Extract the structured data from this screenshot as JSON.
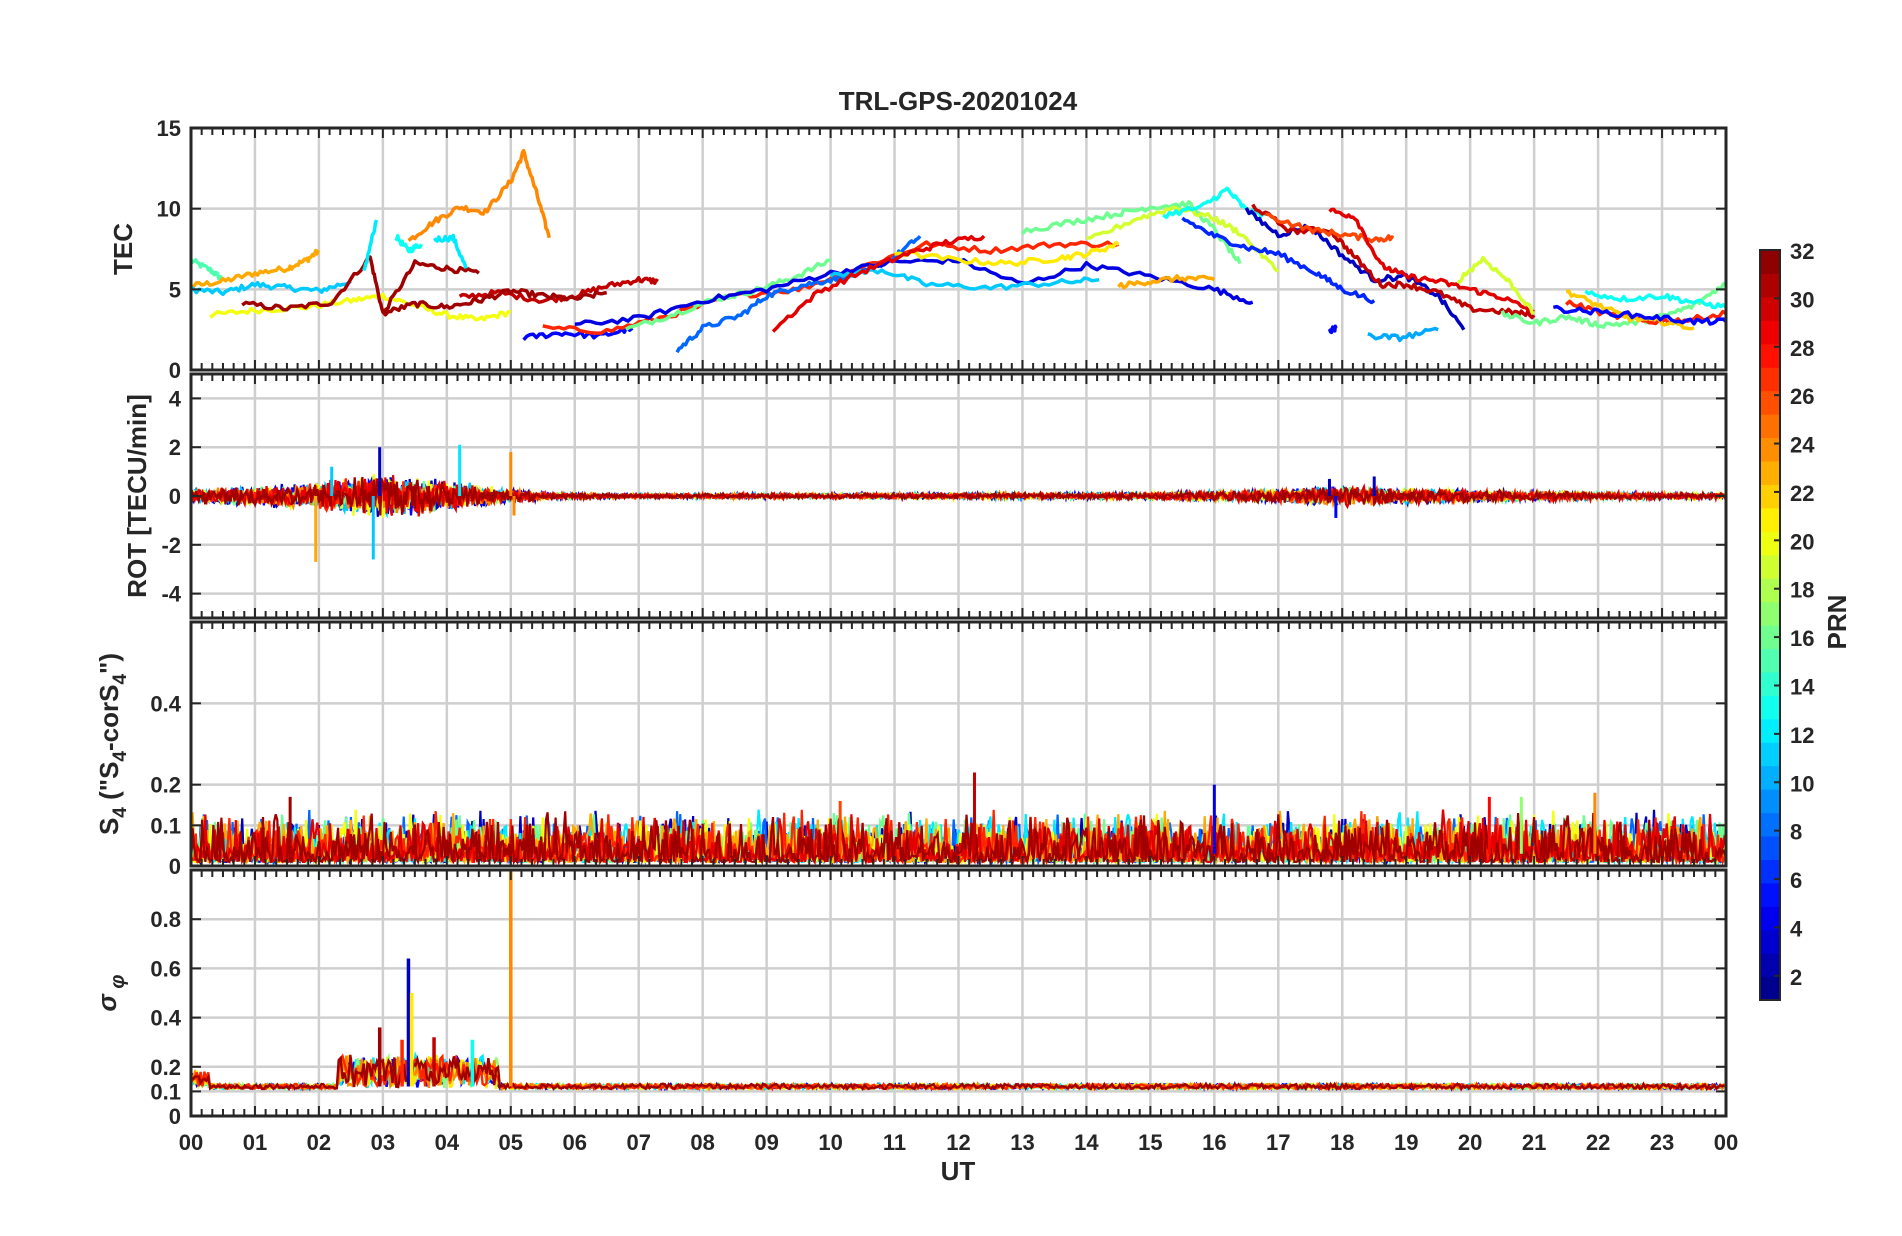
{
  "chart_data": {
    "type": "line",
    "title": "TRL-GPS-20201024",
    "xlabel": "UT",
    "x_tick_labels": [
      "00",
      "01",
      "02",
      "03",
      "04",
      "05",
      "06",
      "07",
      "08",
      "09",
      "10",
      "11",
      "12",
      "13",
      "14",
      "15",
      "16",
      "17",
      "18",
      "19",
      "20",
      "21",
      "22",
      "23",
      "00"
    ],
    "xlim": [
      0,
      24
    ],
    "colorbar": {
      "label": "PRN",
      "colormap": "jet",
      "range": [
        1,
        32
      ],
      "tick_labels": [
        "2",
        "4",
        "6",
        "8",
        "10",
        "12",
        "14",
        "16",
        "18",
        "20",
        "22",
        "24",
        "26",
        "28",
        "30",
        "32"
      ],
      "tick_values": [
        2,
        4,
        6,
        8,
        10,
        12,
        14,
        16,
        18,
        20,
        22,
        24,
        26,
        28,
        30,
        32
      ]
    },
    "panels": [
      {
        "id": "tec",
        "ylabel": "TEC",
        "ylim": [
          0,
          15
        ],
        "yticks": [
          0,
          5,
          10,
          15
        ],
        "ytick_labels": [
          "0",
          "5",
          "10",
          "15"
        ],
        "series": [
          {
            "prn": 15,
            "x": [
              0,
              0.3,
              0.5
            ],
            "y": [
              6.8,
              6.2,
              5.6
            ]
          },
          {
            "prn": 23,
            "x": [
              0,
              0.5,
              1.0,
              1.5,
              1.8,
              2.0
            ],
            "y": [
              5.2,
              5.5,
              6.0,
              6.3,
              6.8,
              7.4
            ]
          },
          {
            "prn": 11,
            "x": [
              0,
              0.5,
              1.0,
              1.5,
              2.0,
              2.5
            ],
            "y": [
              5.0,
              4.8,
              5.3,
              5.1,
              4.9,
              5.5
            ]
          },
          {
            "prn": 20,
            "x": [
              0.3,
              1.0,
              1.8,
              2.5,
              3.0,
              3.5,
              4.0,
              4.5,
              5.0
            ],
            "y": [
              3.4,
              3.7,
              3.9,
              4.3,
              4.6,
              4.0,
              3.4,
              3.1,
              3.6
            ]
          },
          {
            "prn": 31,
            "x": [
              0.8,
              1.5,
              2.2,
              2.8,
              3.0,
              3.5,
              4.0,
              4.5
            ],
            "y": [
              4.1,
              3.8,
              4.2,
              7.0,
              3.5,
              6.6,
              6.3,
              6.0
            ]
          },
          {
            "prn": 12,
            "x": [
              2.7,
              2.9
            ],
            "y": [
              6.0,
              9.3
            ]
          },
          {
            "prn": 13,
            "x": [
              3.2,
              3.4,
              3.6
            ],
            "y": [
              8.3,
              7.4,
              7.8
            ]
          },
          {
            "prn": 24,
            "x": [
              3.4,
              3.8,
              4.2,
              4.6,
              5.0,
              5.2,
              5.4,
              5.6
            ],
            "y": [
              8.0,
              9.2,
              10.1,
              9.8,
              11.7,
              13.5,
              11.0,
              8.2
            ]
          },
          {
            "prn": 12,
            "x": [
              3.8,
              4.1,
              4.3
            ],
            "y": [
              8.1,
              8.2,
              6.3
            ]
          },
          {
            "prn": 30,
            "x": [
              4.2,
              4.8,
              5.5,
              6.0,
              6.5,
              7.0,
              7.3
            ],
            "y": [
              4.5,
              4.8,
              4.3,
              4.6,
              5.2,
              5.6,
              5.5
            ]
          },
          {
            "prn": 31,
            "x": [
              3.0,
              3.5,
              4.0,
              4.5,
              5.0,
              5.5,
              6.0,
              6.5
            ],
            "y": [
              3.5,
              4.1,
              3.9,
              4.3,
              4.9,
              4.6,
              4.4,
              4.8
            ]
          },
          {
            "prn": 5,
            "x": [
              5.2,
              5.8,
              6.4,
              6.9
            ],
            "y": [
              2.0,
              2.3,
              2.1,
              2.6
            ]
          },
          {
            "prn": 27,
            "x": [
              5.5,
              6.5,
              7.5,
              8.5,
              9.5,
              10.5,
              11.5,
              12.5,
              13.5,
              14.5
            ],
            "y": [
              2.6,
              2.4,
              3.4,
              4.6,
              5.0,
              6.4,
              7.8,
              7.4,
              7.8,
              7.8
            ]
          },
          {
            "prn": 16,
            "x": [
              6.8,
              7.5,
              8.2,
              8.8,
              9.4,
              10.0
            ],
            "y": [
              2.5,
              3.4,
              4.4,
              4.9,
              5.7,
              6.8
            ]
          },
          {
            "prn": 8,
            "x": [
              7.6,
              8.0,
              8.6,
              9.0,
              9.5,
              10.0,
              10.5,
              11.0,
              11.4
            ],
            "y": [
              1.2,
              2.6,
              3.4,
              4.6,
              5.2,
              5.6,
              6.0,
              7.0,
              8.3
            ]
          },
          {
            "prn": 4,
            "x": [
              6.0,
              7.0,
              8.0,
              9.0,
              10.0,
              11.0,
              12.0,
              13.0,
              14.0,
              15.0,
              16.0,
              16.6
            ],
            "y": [
              2.8,
              3.2,
              4.3,
              5.0,
              6.0,
              6.7,
              6.8,
              5.3,
              6.5,
              5.8,
              5.0,
              4.2
            ]
          },
          {
            "prn": 11,
            "x": [
              10.0,
              10.8,
              11.5,
              12.5,
              13.5,
              14.2
            ],
            "y": [
              5.8,
              6.2,
              5.3,
              5.1,
              5.4,
              5.6
            ]
          },
          {
            "prn": 21,
            "x": [
              11.0,
              12.0,
              12.8,
              13.5,
              14.0,
              14.5
            ],
            "y": [
              7.3,
              6.8,
              6.6,
              6.9,
              7.2,
              7.8
            ]
          },
          {
            "prn": 29,
            "x": [
              9.1,
              9.8,
              10.5,
              11.2,
              11.8,
              12.4
            ],
            "y": [
              2.5,
              4.8,
              6.1,
              7.2,
              7.9,
              8.3
            ]
          },
          {
            "prn": 16,
            "x": [
              13.0,
              13.8,
              14.5,
              15.0,
              15.6,
              16.0,
              16.4
            ],
            "y": [
              8.6,
              9.2,
              9.7,
              10.1,
              10.3,
              8.7,
              6.6
            ]
          },
          {
            "prn": 19,
            "x": [
              14.0,
              14.8,
              15.4,
              16.0,
              16.4,
              17.0
            ],
            "y": [
              8.0,
              9.4,
              10.1,
              9.4,
              8.5,
              6.1
            ]
          },
          {
            "prn": 13,
            "x": [
              15.2,
              15.8,
              16.2,
              16.5,
              16.8
            ],
            "y": [
              9.6,
              10.1,
              11.2,
              9.9,
              9.6
            ]
          },
          {
            "prn": 23,
            "x": [
              14.5,
              15.0,
              15.5,
              16.0
            ],
            "y": [
              5.2,
              5.5,
              5.7,
              5.6
            ]
          },
          {
            "prn": 6,
            "x": [
              15.5,
              16.0,
              16.5,
              17.0,
              17.6,
              18.0,
              18.5
            ],
            "y": [
              9.4,
              8.3,
              7.6,
              7.2,
              6.0,
              5.0,
              4.3
            ]
          },
          {
            "prn": 3,
            "x": [
              16.5,
              17.0,
              17.5,
              18.0,
              18.5,
              19.0,
              19.5,
              19.9
            ],
            "y": [
              9.9,
              8.4,
              8.9,
              7.1,
              5.6,
              5.8,
              4.6,
              2.5
            ]
          },
          {
            "prn": 30,
            "x": [
              16.6,
              17.2,
              17.8,
              18.2,
              18.6,
              19.0,
              19.5,
              20.0,
              20.6,
              21.0
            ],
            "y": [
              10.2,
              8.6,
              8.7,
              7.0,
              5.3,
              5.3,
              4.8,
              3.8,
              3.6,
              3.4
            ]
          },
          {
            "prn": 26,
            "x": [
              16.8,
              17.5,
              18.0,
              18.5,
              18.8
            ],
            "y": [
              9.6,
              8.7,
              8.4,
              8.1,
              8.2
            ]
          },
          {
            "prn": 29,
            "x": [
              17.8,
              18.2,
              18.6,
              19.0,
              19.5,
              20.0,
              20.5,
              21.0
            ],
            "y": [
              9.9,
              9.5,
              6.5,
              5.8,
              5.5,
              5.0,
              4.5,
              3.6
            ]
          },
          {
            "prn": 10,
            "x": [
              18.4,
              18.9,
              19.5
            ],
            "y": [
              2.1,
              2.0,
              2.5
            ]
          },
          {
            "prn": 19,
            "x": [
              19.8,
              20.2,
              20.6,
              21.0
            ],
            "y": [
              5.5,
              6.9,
              5.5,
              3.5
            ]
          },
          {
            "prn": 16,
            "x": [
              20.5,
              21.0,
              21.5,
              22.0,
              22.5,
              23.0,
              23.5,
              24.0
            ],
            "y": [
              3.5,
              2.9,
              3.3,
              2.8,
              2.9,
              3.3,
              4.0,
              5.4
            ]
          },
          {
            "prn": 13,
            "x": [
              21.8,
              22.4,
              23.0,
              23.5,
              24.0
            ],
            "y": [
              4.8,
              4.4,
              4.6,
              4.2,
              3.9
            ]
          },
          {
            "prn": 27,
            "x": [
              21.5,
              22.2,
              22.8,
              23.4,
              24.0
            ],
            "y": [
              4.2,
              3.4,
              3.0,
              3.1,
              3.5
            ]
          },
          {
            "prn": 22,
            "x": [
              21.5,
              22.0,
              22.5,
              23.0,
              23.5
            ],
            "y": [
              4.9,
              4.0,
              3.2,
              3.0,
              2.6
            ]
          },
          {
            "prn": 5,
            "x": [
              21.3,
              22.0,
              22.8,
              23.5,
              24.0
            ],
            "y": [
              3.8,
              3.6,
              3.3,
              3.0,
              3.0
            ]
          },
          {
            "prn": 5,
            "x": [
              17.8,
              17.9
            ],
            "y": [
              2.4,
              2.6
            ]
          }
        ]
      },
      {
        "id": "rot",
        "ylabel": "ROT [TECU/min]",
        "ylim": [
          -5,
          5
        ],
        "yticks": [
          -4,
          -2,
          0,
          2,
          4
        ],
        "ytick_labels": [
          "-4",
          "-2",
          "0",
          "2",
          "4"
        ],
        "spikes": [
          {
            "prn": 23,
            "x": 1.95,
            "y": -2.7
          },
          {
            "prn": 11,
            "x": 2.85,
            "y": -2.6
          },
          {
            "prn": 3,
            "x": 2.95,
            "y": 2.0
          },
          {
            "prn": 12,
            "x": 4.2,
            "y": 2.1
          },
          {
            "prn": 24,
            "x": 5.0,
            "y": 1.8
          },
          {
            "prn": 24,
            "x": 5.05,
            "y": -0.8
          },
          {
            "prn": 11,
            "x": 2.2,
            "y": 1.2
          },
          {
            "prn": 3,
            "x": 17.8,
            "y": 0.7
          },
          {
            "prn": 3,
            "x": 18.5,
            "y": 0.8
          },
          {
            "prn": 5,
            "x": 17.9,
            "y": -0.9
          }
        ],
        "noise_amplitude_by_hour": [
          [
            0,
            0.3
          ],
          [
            2,
            0.6
          ],
          [
            3,
            1.1
          ],
          [
            4.5,
            0.5
          ],
          [
            5.5,
            0.15
          ],
          [
            7,
            0.1
          ],
          [
            15,
            0.15
          ],
          [
            17,
            0.3
          ],
          [
            18,
            0.45
          ],
          [
            21,
            0.2
          ],
          [
            24,
            0.12
          ]
        ]
      },
      {
        "id": "s4",
        "ylabel": "S4 (\"S4-corS4\")",
        "ylim": [
          0,
          0.6
        ],
        "yticks": [
          0,
          0.1,
          0.2,
          0.4
        ],
        "ytick_labels": [
          "0",
          "0.1",
          "0.2",
          "0.4"
        ],
        "spikes": [
          {
            "prn": 31,
            "x": 1.55,
            "y": 0.17
          },
          {
            "prn": 30,
            "x": 12.25,
            "y": 0.23
          },
          {
            "prn": 4,
            "x": 16.0,
            "y": 0.2
          },
          {
            "prn": 24,
            "x": 21.95,
            "y": 0.18
          },
          {
            "prn": 28,
            "x": 20.3,
            "y": 0.17
          },
          {
            "prn": 17,
            "x": 20.8,
            "y": 0.17
          },
          {
            "prn": 26,
            "x": 10.15,
            "y": 0.16
          }
        ],
        "baseline_range": [
          0.01,
          0.14
        ]
      },
      {
        "id": "sigma_phi",
        "ylabel": "σ_φ",
        "ylim": [
          0,
          1
        ],
        "yticks": [
          0,
          0.1,
          0.2,
          0.4,
          0.6,
          0.8
        ],
        "ytick_labels": [
          "0",
          "0.1",
          "0.2",
          "0.4",
          "0.6",
          "0.8"
        ],
        "spikes": [
          {
            "prn": 24,
            "x": 5.0,
            "y": 1.0
          },
          {
            "prn": 3,
            "x": 3.4,
            "y": 0.64
          },
          {
            "prn": 21,
            "x": 3.45,
            "y": 0.5
          },
          {
            "prn": 31,
            "x": 2.95,
            "y": 0.36
          },
          {
            "prn": 13,
            "x": 4.4,
            "y": 0.31
          },
          {
            "prn": 30,
            "x": 3.8,
            "y": 0.32
          },
          {
            "prn": 27,
            "x": 3.3,
            "y": 0.31
          }
        ],
        "baseline": 0.12
      }
    ]
  }
}
